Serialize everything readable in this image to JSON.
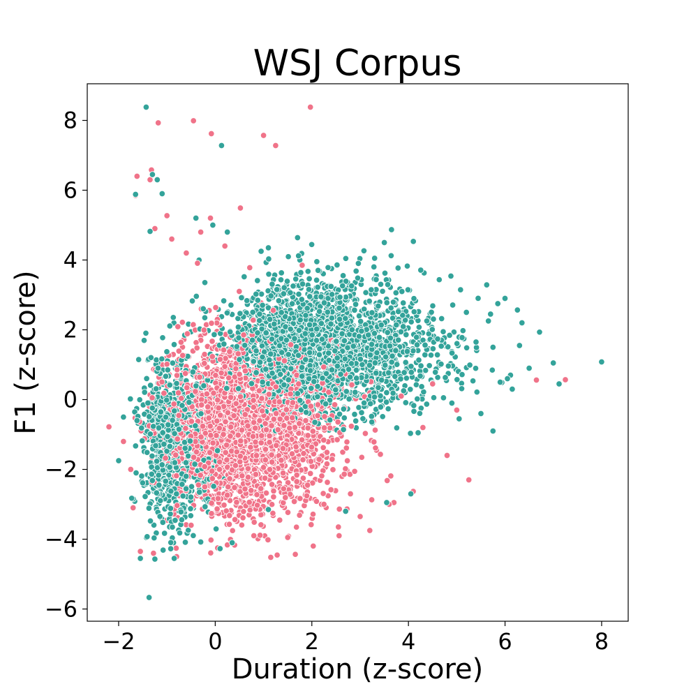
{
  "colors": {
    "series_a": "#f07389",
    "series_b": "#33a39a"
  },
  "chart_data": {
    "type": "scatter",
    "title": "WSJ Corpus",
    "xlabel": "Duration (z-score)",
    "ylabel": "F1 (z-score)",
    "xlim": [
      -2.65,
      8.55
    ],
    "ylim": [
      -6.35,
      9.05
    ],
    "x_ticks": [
      -2,
      0,
      2,
      4,
      6,
      8
    ],
    "y_ticks": [
      -6,
      -4,
      -2,
      0,
      2,
      4,
      6,
      8
    ],
    "x_tick_labels": [
      "−2",
      "0",
      "2",
      "4",
      "6",
      "8"
    ],
    "y_tick_labels": [
      "−6",
      "−4",
      "−2",
      "0",
      "2",
      "4",
      "6",
      "8"
    ],
    "grid": false,
    "legend": "none",
    "series": [
      {
        "color": "#f07389",
        "cloud": {
          "x_mean": 0.3,
          "x_sd": 1.05,
          "y_mean": -0.8,
          "y_sd": 1.2,
          "x_min": -1.8,
          "y_min": -4.5,
          "y_max": 4.8,
          "count": 2600
        },
        "points": [
          [
            -2.2,
            -0.78
          ],
          [
            -1.18,
            7.93
          ],
          [
            -0.45,
            7.99
          ],
          [
            -0.08,
            7.62
          ],
          [
            1.0,
            7.57
          ],
          [
            1.25,
            7.28
          ],
          [
            1.97,
            8.38
          ],
          [
            -1.62,
            6.4
          ],
          [
            -1.32,
            6.58
          ],
          [
            -1.35,
            6.3
          ],
          [
            -1.0,
            5.27
          ],
          [
            0.52,
            5.49
          ],
          [
            -0.1,
            5.2
          ],
          [
            -1.65,
            5.85
          ],
          [
            6.65,
            0.56
          ],
          [
            7.25,
            0.57
          ],
          [
            5.25,
            -2.3
          ],
          [
            4.8,
            -1.6
          ],
          [
            4.1,
            -2.63
          ],
          [
            3.7,
            -2.95
          ],
          [
            3.0,
            -3.35
          ],
          [
            2.25,
            -3.0
          ],
          [
            1.15,
            -4.52
          ],
          [
            1.5,
            -3.95
          ],
          [
            -0.8,
            -4.5
          ],
          [
            -1.55,
            -4.35
          ],
          [
            0.05,
            -4.25
          ],
          [
            2.55,
            -3.65
          ],
          [
            3.2,
            -3.75
          ],
          [
            3.6,
            -3.0
          ],
          [
            2.8,
            -2.7
          ],
          [
            0.8,
            -3.9
          ],
          [
            -0.5,
            -3.6
          ],
          [
            4.3,
            -0.8
          ],
          [
            4.5,
            0.45
          ],
          [
            5.0,
            -0.3
          ],
          [
            3.85,
            0.1
          ],
          [
            -1.9,
            -1.2
          ],
          [
            -1.75,
            -2.0
          ],
          [
            -1.7,
            -3.1
          ],
          [
            -0.6,
            4.2
          ],
          [
            -0.9,
            4.6
          ],
          [
            -0.3,
            4.8
          ],
          [
            0.2,
            4.4
          ],
          [
            1.8,
            3.85
          ],
          [
            -1.25,
            4.9
          ]
        ]
      },
      {
        "color": "#33a39a",
        "cloud": {
          "x_mean": 1.8,
          "x_sd": 1.3,
          "y_mean": 1.5,
          "y_sd": 0.95,
          "x_min": -1.3,
          "y_min": -1.0,
          "y_max": 4.8,
          "count": 2400
        },
        "cloud2": {
          "x_mean": -1.0,
          "x_sd": 0.45,
          "y_mean": -1.2,
          "y_sd": 1.2,
          "x_min": -1.8,
          "y_min": -4.4,
          "y_max": 3.2,
          "count": 800
        },
        "points": [
          [
            -1.43,
            8.38
          ],
          [
            0.13,
            7.28
          ],
          [
            -1.65,
            5.88
          ],
          [
            -1.3,
            6.45
          ],
          [
            -1.2,
            6.3
          ],
          [
            -1.1,
            5.9
          ],
          [
            -1.37,
            -5.67
          ],
          [
            -1.55,
            -4.55
          ],
          [
            -1.25,
            -4.57
          ],
          [
            -0.85,
            -4.55
          ],
          [
            0.1,
            -4.27
          ],
          [
            0.35,
            -4.1
          ],
          [
            1.1,
            -3.15
          ],
          [
            2.7,
            -3.2
          ],
          [
            3.55,
            -2.95
          ],
          [
            4.05,
            -2.7
          ],
          [
            5.05,
            -0.55
          ],
          [
            5.5,
            -0.4
          ],
          [
            5.75,
            -0.9
          ],
          [
            5.9,
            0.5
          ],
          [
            6.05,
            0.6
          ],
          [
            6.15,
            0.3
          ],
          [
            6.5,
            0.9
          ],
          [
            6.3,
            1.55
          ],
          [
            6.35,
            2.2
          ],
          [
            6.0,
            2.9
          ],
          [
            5.85,
            2.75
          ],
          [
            5.7,
            2.45
          ],
          [
            5.75,
            1.5
          ],
          [
            5.4,
            1.65
          ],
          [
            7.0,
            1.05
          ],
          [
            7.12,
            0.45
          ],
          [
            8.0,
            1.08
          ],
          [
            3.65,
            4.87
          ],
          [
            3.5,
            4.5
          ],
          [
            3.3,
            4.05
          ],
          [
            1.1,
            4.35
          ],
          [
            0.95,
            4.25
          ],
          [
            -0.05,
            5.0
          ],
          [
            0.25,
            4.8
          ],
          [
            -0.4,
            5.2
          ],
          [
            -1.35,
            4.82
          ],
          [
            -1.62,
            -0.6
          ],
          [
            -2.0,
            -1.75
          ],
          [
            -1.9,
            -0.5
          ],
          [
            4.2,
            -0.95
          ],
          [
            4.9,
            -0.1
          ],
          [
            5.2,
            2.5
          ]
        ]
      }
    ]
  }
}
